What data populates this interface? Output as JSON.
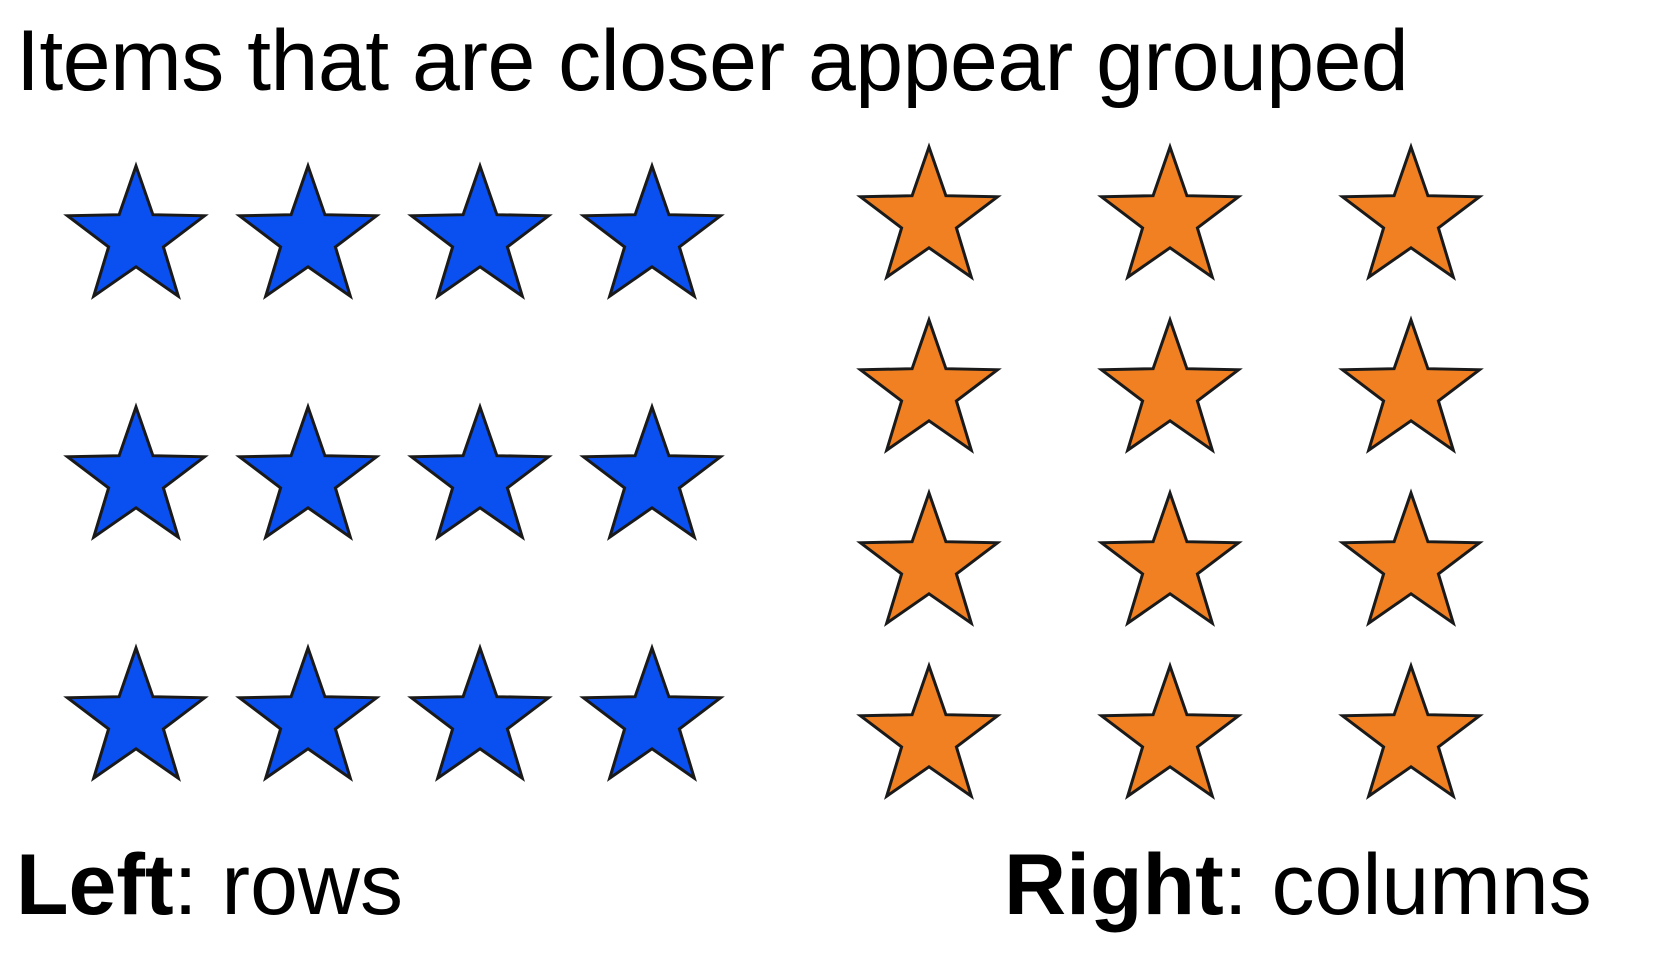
{
  "title": "Items that are closer appear grouped",
  "left_group": {
    "label_bold": "Left",
    "label_rest": ": rows",
    "rows": 3,
    "columns": 4,
    "star_color": "#0a4ff0",
    "icon": "star-icon"
  },
  "right_group": {
    "label_bold": "Right",
    "label_rest": ": columns",
    "rows": 4,
    "columns": 3,
    "star_color": "#f08022",
    "icon": "star-icon"
  },
  "stroke_color": "#1a1a1a"
}
